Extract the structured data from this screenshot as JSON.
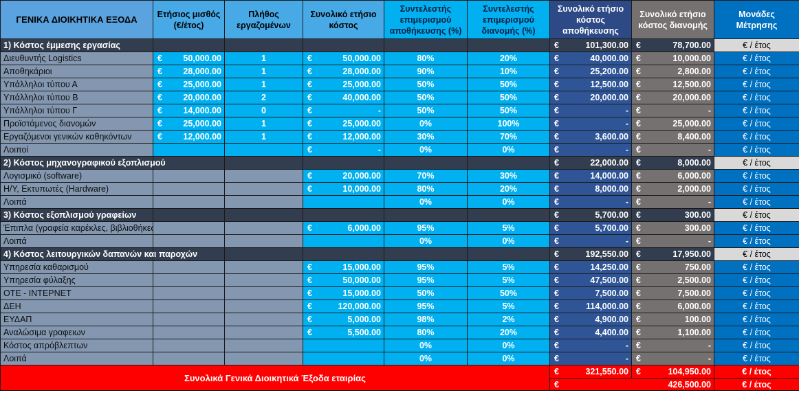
{
  "headers": {
    "name": "ΓΕΝΙΚΑ ΔΙΟΙΚΗΤΙΚΑ ΕΞΟΔΑ",
    "salary": "Ετήσιος μισθός (€/έτος)",
    "employees": "Πλήθος εργαζομένων",
    "annual_cost": "Συνολικό ετήσιο κόστος",
    "storage_coef": "Συντελεστής επιμερισμού αποθήκευσης (%)",
    "distribution_coef": "Συντελεστής επιμερισμού διανομής (%)",
    "annual_storage_cost": "Συνολικό ετήσιο κόστος αποθήκευσης",
    "annual_distribution_cost": "Συνολικό ετήσιο κόστος διανομής",
    "unit": "Μονάδες Μέτρησης"
  },
  "currency": "€",
  "sections": [
    {
      "title": "1) Κόστος έμμεσης εργασίας",
      "storage_total": "101,300.00",
      "distribution_total": "78,700.00",
      "unit": "€ / έτος",
      "rows": [
        {
          "name": "Διευθυντής  Logistics",
          "salary": "50,000.00",
          "employees": "1",
          "cost": "50,000.00",
          "sc": "80%",
          "dc": "20%",
          "st": "40,000.00",
          "dt": "10,000.00",
          "unit": "€ / έτος"
        },
        {
          "name": "Αποθηκάριοι",
          "salary": "28,000.00",
          "employees": "1",
          "cost": "28,000.00",
          "sc": "90%",
          "dc": "10%",
          "st": "25,200.00",
          "dt": "2,800.00",
          "unit": "€ / έτος"
        },
        {
          "name": "Υπάλληλοι τύπου Α",
          "salary": "25,000.00",
          "employees": "1",
          "cost": "25,000.00",
          "sc": "50%",
          "dc": "50%",
          "st": "12,500.00",
          "dt": "12,500.00",
          "unit": "€ / έτος"
        },
        {
          "name": "Υπάλληλοι τύπου Β",
          "salary": "20,000.00",
          "employees": "2",
          "cost": "40,000.00",
          "sc": "50%",
          "dc": "50%",
          "st": "20,000.00",
          "dt": "20,000.00",
          "unit": "€ / έτος"
        },
        {
          "name": "Υπάλληλοι τύπου Γ",
          "salary": "14,000.00",
          "employees": "0",
          "cost": "-",
          "sc": "50%",
          "dc": "50%",
          "st": "-",
          "dt": "-",
          "unit": "€ / έτος"
        },
        {
          "name": "Προϊστάμενος διανομών",
          "salary": "25,000.00",
          "employees": "1",
          "cost": "25,000.00",
          "sc": "0%",
          "dc": "100%",
          "st": "-",
          "dt": "25,000.00",
          "unit": "€ / έτος"
        },
        {
          "name": "Εργαζόμενοι γενικών καθηκόντων",
          "salary": "12,000.00",
          "employees": "1",
          "cost": "12,000.00",
          "sc": "30%",
          "dc": "70%",
          "st": "3,600.00",
          "dt": "8,400.00",
          "unit": "€ / έτος"
        },
        {
          "name": "Λοιποί",
          "salary": "",
          "employees": "",
          "cost": "-",
          "sc": "0%",
          "dc": "0%",
          "st": "-",
          "dt": "-",
          "unit": "€ / έτος"
        }
      ]
    },
    {
      "title": "2) Κόστος μηχανογραφικού εξοπλισμού",
      "storage_total": "22,000.00",
      "distribution_total": "8,000.00",
      "unit": "€ / έτος",
      "rows": [
        {
          "name": "Λογισμικό (software)",
          "cost": "20,000.00",
          "sc": "70%",
          "dc": "30%",
          "st": "14,000.00",
          "dt": "6,000.00",
          "unit": "€ / έτος"
        },
        {
          "name": "Η/Υ, Εκτυπωτές (Hardware)",
          "cost": "10,000.00",
          "sc": "80%",
          "dc": "20%",
          "st": "8,000.00",
          "dt": "2,000.00",
          "unit": "€ / έτος"
        },
        {
          "name": "Λοιπά",
          "cost": "",
          "sc": "0%",
          "dc": "0%",
          "st": "-",
          "dt": "-",
          "unit": "€ / έτος"
        }
      ]
    },
    {
      "title": "3) Κόστος εξοπλισμού γραφείων",
      "storage_total": "5,700.00",
      "distribution_total": "300.00",
      "unit": "€ / έτος",
      "rows": [
        {
          "name": "Έπιπλα (γραφεία καρέκλες, βιβλιοθήκες)",
          "cost": "6,000.00",
          "sc": "95%",
          "dc": "5%",
          "st": "5,700.00",
          "dt": "300.00",
          "unit": "€ / έτος"
        },
        {
          "name": "Λοιπά",
          "cost": "",
          "sc": "0%",
          "dc": "0%",
          "st": "-",
          "dt": "-",
          "unit": "€ / έτος"
        }
      ]
    },
    {
      "title": "4) Κόστος λειτουργικών δαπανών και παροχών",
      "storage_total": "192,550.00",
      "distribution_total": "17,950.00",
      "unit": "€ / έτος",
      "rows": [
        {
          "name": "Υπηρεσία καθαρισμού",
          "cost": "15,000.00",
          "sc": "95%",
          "dc": "5%",
          "st": "14,250.00",
          "dt": "750.00",
          "unit": "€ / έτος"
        },
        {
          "name": "Υπηρεσία φύλαξης",
          "cost": "50,000.00",
          "sc": "95%",
          "dc": "5%",
          "st": "47,500.00",
          "dt": "2,500.00",
          "unit": "€ / έτος"
        },
        {
          "name": "ΟΤΕ - ΙΝΤΕΡΝΕΤ",
          "cost": "15,000.00",
          "sc": "50%",
          "dc": "50%",
          "st": "7,500.00",
          "dt": "7,500.00",
          "unit": "€ / έτος"
        },
        {
          "name": "ΔΕΗ",
          "cost": "120,000.00",
          "sc": "95%",
          "dc": "5%",
          "st": "114,000.00",
          "dt": "6,000.00",
          "unit": "€ / έτος"
        },
        {
          "name": "ΕΥΔΑΠ",
          "cost": "5,000.00",
          "sc": "98%",
          "dc": "2%",
          "st": "4,900.00",
          "dt": "100.00",
          "unit": "€ / έτος"
        },
        {
          "name": "Αναλώσιμα γραφειων",
          "cost": "5,500.00",
          "sc": "80%",
          "dc": "20%",
          "st": "4,400.00",
          "dt": "1,100.00",
          "unit": "€ / έτος"
        },
        {
          "name": "Κόστος απρόβλεπτων",
          "cost": "",
          "sc": "0%",
          "dc": "0%",
          "st": "-",
          "dt": "-",
          "unit": "€ / έτος"
        },
        {
          "name": "Λοιπά",
          "cost": "",
          "sc": "0%",
          "dc": "0%",
          "st": "-",
          "dt": "-",
          "unit": "€ / έτος"
        }
      ]
    }
  ],
  "totals": {
    "label": "Συνολικά Γενικά Διοικητικά Έξοδα εταιρίας",
    "storage": "321,550.00",
    "distribution": "104,950.00",
    "grand": "426,500.00",
    "unit": "€ / έτος"
  }
}
